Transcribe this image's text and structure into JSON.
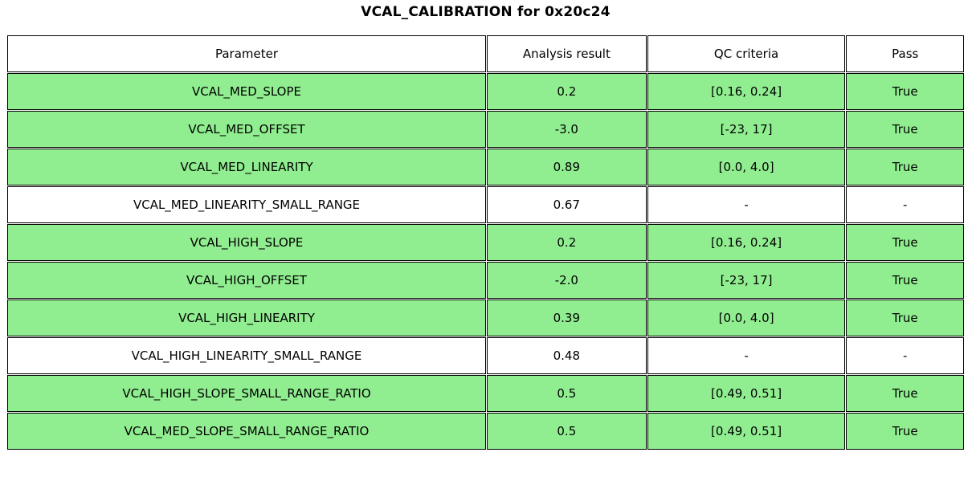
{
  "title": "VCAL_CALIBRATION for 0x20c24",
  "colors": {
    "pass_row_bg": "#90EE90",
    "neutral_row_bg": "#FFFFFF",
    "border": "#000000",
    "text": "#000000"
  },
  "chart_data": {
    "type": "table",
    "title": "VCAL_CALIBRATION for 0x20c24",
    "columns": [
      "Parameter",
      "Analysis result",
      "QC criteria",
      "Pass"
    ],
    "rows": [
      {
        "parameter": "VCAL_MED_SLOPE",
        "analysis_result": "0.2",
        "qc_criteria": "[0.16, 0.24]",
        "pass": "True",
        "highlight": true
      },
      {
        "parameter": "VCAL_MED_OFFSET",
        "analysis_result": "-3.0",
        "qc_criteria": "[-23, 17]",
        "pass": "True",
        "highlight": true
      },
      {
        "parameter": "VCAL_MED_LINEARITY",
        "analysis_result": "0.89",
        "qc_criteria": "[0.0, 4.0]",
        "pass": "True",
        "highlight": true
      },
      {
        "parameter": "VCAL_MED_LINEARITY_SMALL_RANGE",
        "analysis_result": "0.67",
        "qc_criteria": "-",
        "pass": "-",
        "highlight": false
      },
      {
        "parameter": "VCAL_HIGH_SLOPE",
        "analysis_result": "0.2",
        "qc_criteria": "[0.16, 0.24]",
        "pass": "True",
        "highlight": true
      },
      {
        "parameter": "VCAL_HIGH_OFFSET",
        "analysis_result": "-2.0",
        "qc_criteria": "[-23, 17]",
        "pass": "True",
        "highlight": true
      },
      {
        "parameter": "VCAL_HIGH_LINEARITY",
        "analysis_result": "0.39",
        "qc_criteria": "[0.0, 4.0]",
        "pass": "True",
        "highlight": true
      },
      {
        "parameter": "VCAL_HIGH_LINEARITY_SMALL_RANGE",
        "analysis_result": "0.48",
        "qc_criteria": "-",
        "pass": "-",
        "highlight": false
      },
      {
        "parameter": "VCAL_HIGH_SLOPE_SMALL_RANGE_RATIO",
        "analysis_result": "0.5",
        "qc_criteria": "[0.49, 0.51]",
        "pass": "True",
        "highlight": true
      },
      {
        "parameter": "VCAL_MED_SLOPE_SMALL_RANGE_RATIO",
        "analysis_result": "0.5",
        "qc_criteria": "[0.49, 0.51]",
        "pass": "True",
        "highlight": true
      }
    ]
  }
}
